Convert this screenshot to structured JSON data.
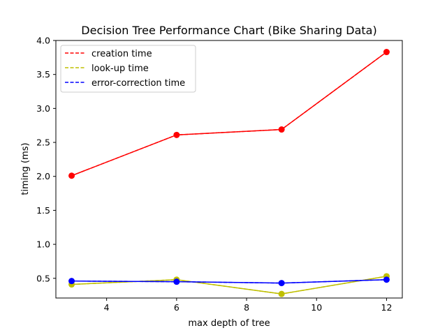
{
  "chart_data": {
    "type": "line",
    "title": "Decision Tree Performance Chart (Bike Sharing Data)",
    "xlabel": "max depth of tree",
    "ylabel": "timing (ms)",
    "xlim": [
      2.55,
      12.45
    ],
    "ylim": [
      0.21,
      4.0
    ],
    "x_ticks": [
      4,
      6,
      8,
      10,
      12
    ],
    "y_ticks": [
      0.5,
      1.0,
      1.5,
      2.0,
      2.5,
      3.0,
      3.5,
      4.0
    ],
    "x_tick_labels": [
      "4",
      "6",
      "8",
      "10",
      "12"
    ],
    "y_tick_labels": [
      "0.5",
      "1.0",
      "1.5",
      "2.0",
      "2.5",
      "3.0",
      "3.5",
      "4.0"
    ],
    "grid": false,
    "legend_position": "top-left",
    "x": [
      3,
      6,
      9,
      12
    ],
    "series": [
      {
        "name": "creation time",
        "color": "#ff0000",
        "values": [
          2.01,
          2.61,
          2.69,
          3.83
        ]
      },
      {
        "name": "look-up time",
        "color": "#bfbf00",
        "values": [
          0.41,
          0.48,
          0.27,
          0.53
        ]
      },
      {
        "name": "error-correction time",
        "color": "#0000ff",
        "values": [
          0.46,
          0.45,
          0.43,
          0.48
        ]
      }
    ]
  }
}
